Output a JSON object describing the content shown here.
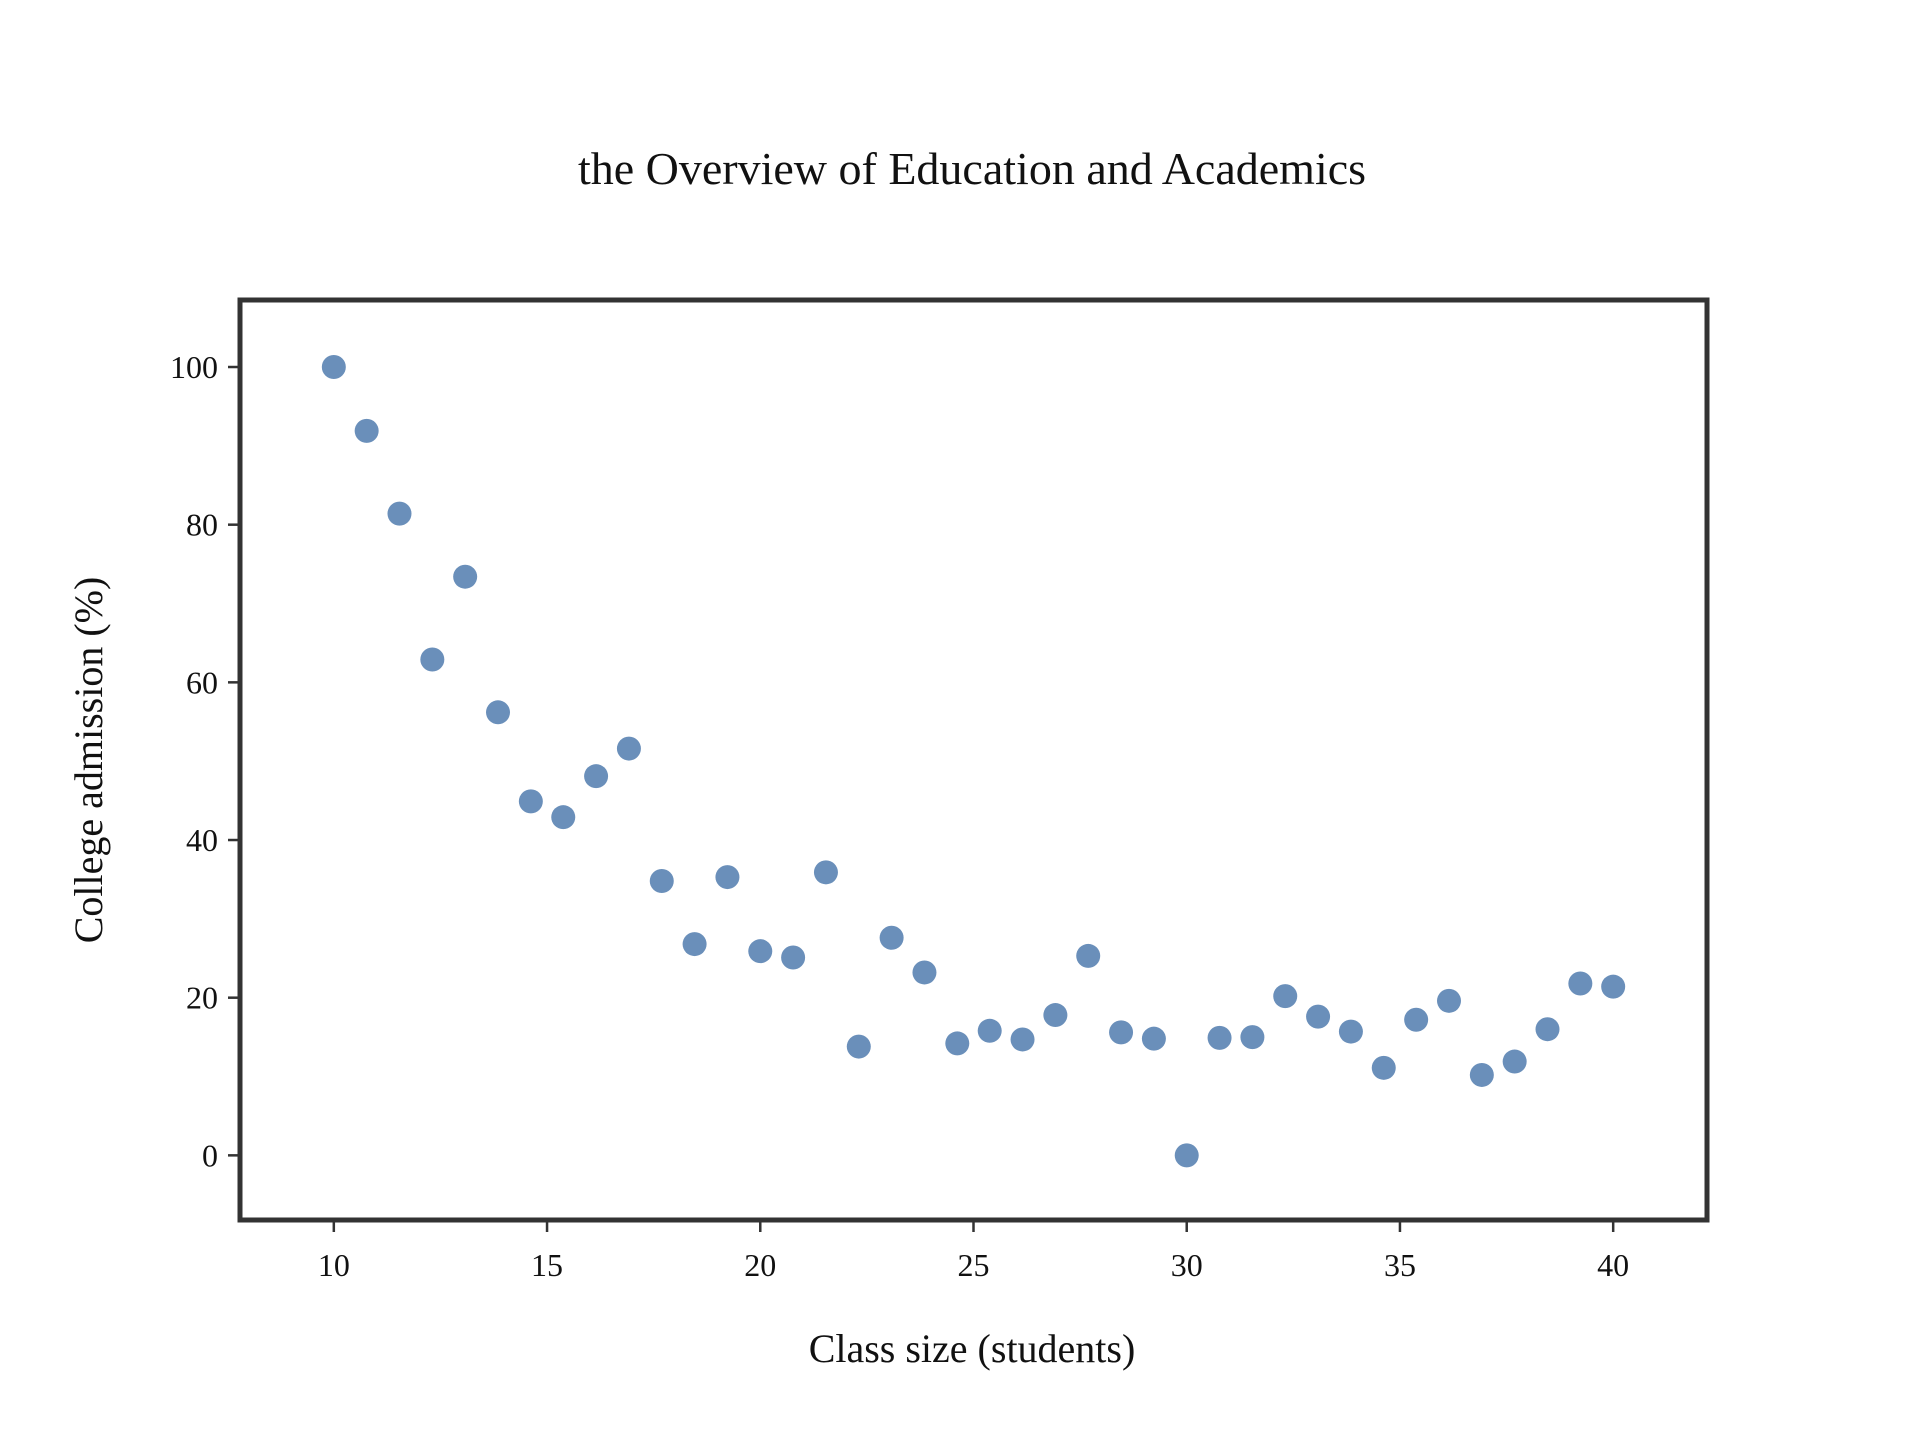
{
  "chart_data": {
    "type": "scatter",
    "title": "the Overview of Education and Academics",
    "xlabel": "Class size (students)",
    "ylabel": "College admission (%)",
    "xlim": [
      7.8,
      42.2
    ],
    "ylim": [
      -8.2,
      108.5
    ],
    "xticks": [
      10,
      15,
      20,
      25,
      30,
      35,
      40
    ],
    "yticks": [
      0,
      20,
      40,
      60,
      80,
      100
    ],
    "grid": false,
    "marker_color": "#6a8fba",
    "series": [
      {
        "x": [
          10.0,
          10.77,
          11.54,
          12.31,
          13.08,
          13.85,
          14.62,
          15.38,
          16.15,
          16.92,
          17.69,
          18.46,
          19.23,
          20.0,
          20.77,
          21.54,
          22.31,
          23.08,
          23.85,
          24.62,
          25.38,
          26.15,
          26.92,
          27.69,
          28.46,
          29.23,
          30.0,
          30.77,
          31.54,
          32.31,
          33.08,
          33.85,
          34.62,
          35.38,
          36.15,
          36.92,
          37.69,
          38.46,
          39.23,
          40.0
        ],
        "y": [
          100.0,
          91.9,
          81.4,
          62.9,
          73.4,
          56.2,
          44.9,
          42.9,
          48.1,
          51.6,
          34.8,
          26.8,
          35.3,
          25.9,
          25.1,
          35.9,
          13.8,
          27.6,
          23.2,
          14.2,
          15.8,
          14.7,
          17.8,
          25.3,
          15.6,
          14.8,
          0.0,
          14.9,
          15.0,
          20.2,
          17.6,
          15.7,
          11.1,
          17.2,
          19.6,
          10.2,
          11.9,
          16.0,
          21.8,
          21.4
        ]
      }
    ]
  }
}
